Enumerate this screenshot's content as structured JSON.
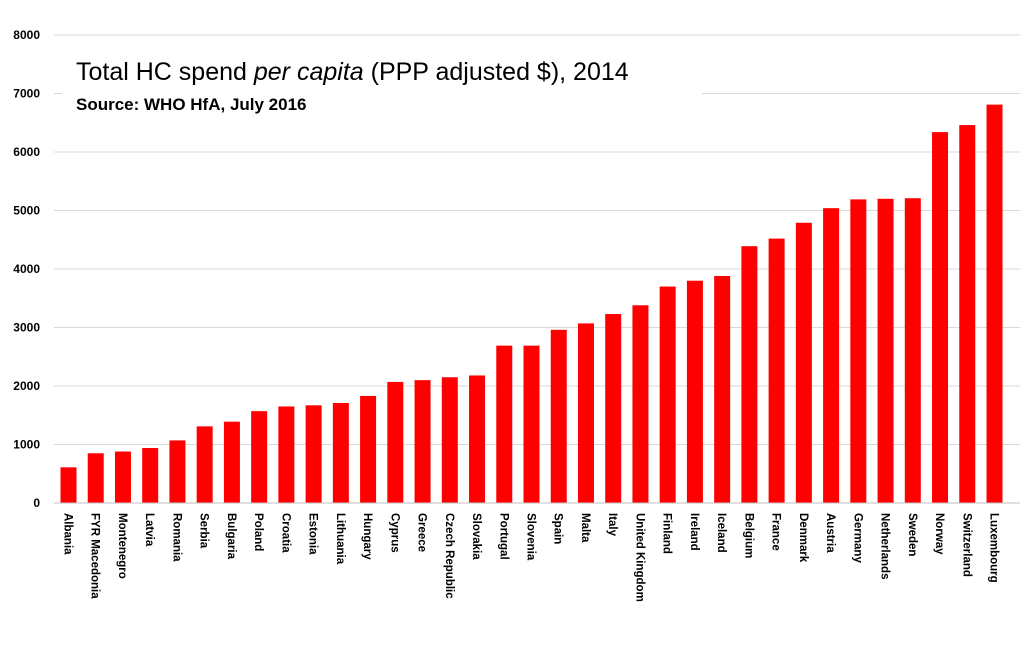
{
  "chart_data": {
    "type": "bar",
    "title_prefix": "Total HC spend ",
    "title_italic": "per capita",
    "title_suffix": " (PPP adjusted $), 2014",
    "subtitle": "Source: WHO HfA, July 2016",
    "categories": [
      "Albania",
      "FYR Macedonia",
      "Montenegro",
      "Latvia",
      "Romania",
      "Serbia",
      "Bulgaria",
      "Poland",
      "Croatia",
      "Estonia",
      "Lithuania",
      "Hungary",
      "Cyprus",
      "Greece",
      "Czech Republic",
      "Slovakia",
      "Portugal",
      "Slovenia",
      "Spain",
      "Malta",
      "Italy",
      "United Kingdom",
      "Finland",
      "Ireland",
      "Iceland",
      "Belgium",
      "France",
      "Denmark",
      "Austria",
      "Germany",
      "Netherlands",
      "Sweden",
      "Norway",
      "Switzerland",
      "Luxembourg"
    ],
    "values": [
      610,
      850,
      880,
      940,
      1070,
      1310,
      1390,
      1570,
      1650,
      1670,
      1710,
      1830,
      2070,
      2100,
      2150,
      2180,
      2690,
      2690,
      2960,
      3070,
      3230,
      3380,
      3700,
      3800,
      3880,
      4390,
      4520,
      4790,
      5040,
      5190,
      5200,
      5210,
      6340,
      6460,
      6810
    ],
    "ylim": [
      0,
      8000
    ],
    "yticks": [
      "0",
      "1000",
      "2000",
      "3000",
      "4000",
      "5000",
      "6000",
      "7000",
      "8000"
    ],
    "grid": true,
    "bar_color": "#ff0000"
  }
}
